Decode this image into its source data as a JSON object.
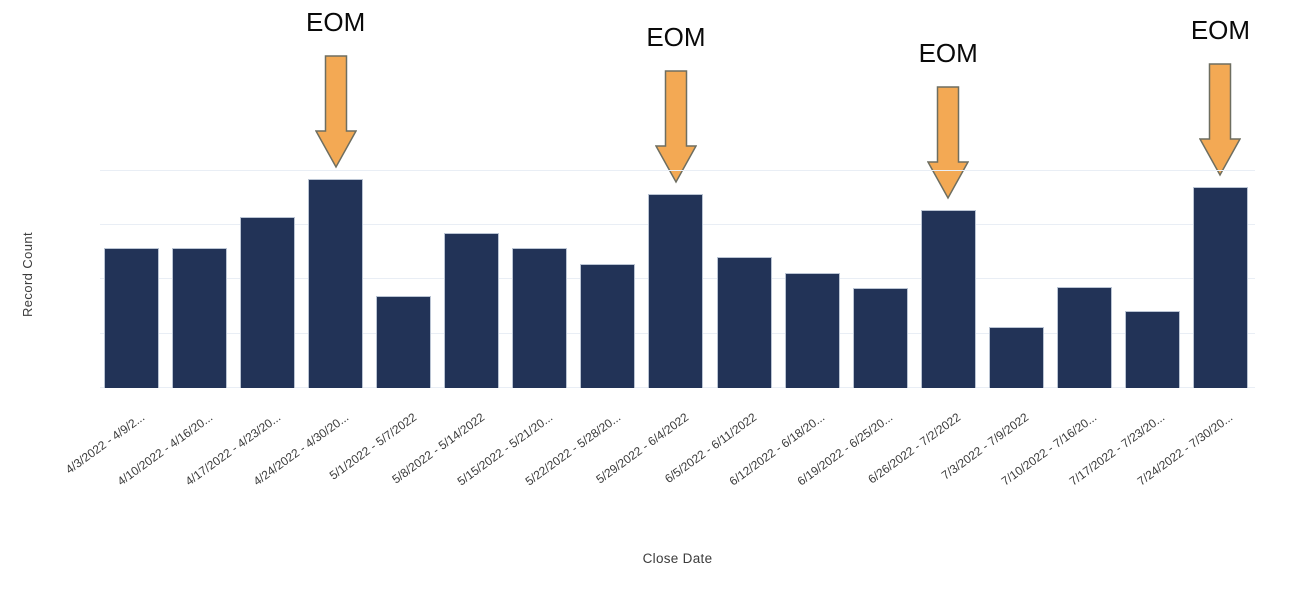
{
  "chart_data": {
    "type": "bar",
    "title": "",
    "xlabel": "Close Date",
    "ylabel": "Record Count",
    "legend": "none",
    "grid": "horizontal",
    "y_ticks_labeled": false,
    "ylim": [
      0,
      42
    ],
    "gridline_values": [
      0,
      10,
      20,
      30,
      40
    ],
    "x_tick_rotation_deg": -36,
    "categories": [
      "4/3/2022 - 4/9/2...",
      "4/10/2022 - 4/16/20...",
      "4/17/2022 - 4/23/20...",
      "4/24/2022 - 4/30/20...",
      "5/1/2022 - 5/7/2022",
      "5/8/2022 - 5/14/2022",
      "5/15/2022 - 5/21/20...",
      "5/22/2022 - 5/28/20...",
      "5/29/2022 - 6/4/2022",
      "6/5/2022 - 6/11/2022",
      "6/12/2022 - 6/18/20...",
      "6/19/2022 - 6/25/20...",
      "6/26/2022 - 7/2/2022",
      "7/3/2022 - 7/9/2022",
      "7/10/2022 - 7/16/20...",
      "7/17/2022 - 7/23/20...",
      "7/24/2022 - 7/30/20..."
    ],
    "values": [
      25.8,
      25.8,
      31.5,
      38.5,
      17.0,
      28.5,
      25.8,
      22.8,
      35.7,
      24.1,
      21.2,
      18.4,
      32.8,
      11.2,
      18.6,
      14.2,
      37.0
    ],
    "values_note": "y axis has no numeric tick labels; values estimated in gridline units (one gridline spacing = 10)",
    "annotations": [
      {
        "label": "EOM",
        "category_index": 3
      },
      {
        "label": "EOM",
        "category_index": 8
      },
      {
        "label": "EOM",
        "category_index": 12
      },
      {
        "label": "EOM",
        "category_index": 16
      }
    ],
    "colors": {
      "bar_fill": "#223357",
      "bar_border": "#bac4d3",
      "gridline": "#e9eef5",
      "arrow_fill": "#f3a954",
      "arrow_border": "#6e6e60",
      "annotation_text": "#0a0a0a",
      "axis_title": "#3c3c3c",
      "tick_label": "#3b3b3b",
      "background": "#ffffff"
    }
  }
}
